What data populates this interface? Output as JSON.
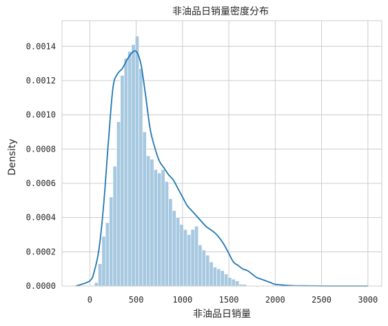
{
  "chart_data": {
    "type": "histogram-density",
    "title": "非油品日销量密度分布",
    "xlabel": "非油品日销量",
    "ylabel": "Density",
    "xlim": [
      -300,
      3150
    ],
    "ylim": [
      0,
      0.00155
    ],
    "xticks": [
      0,
      500,
      1000,
      1500,
      2000,
      2500,
      3000
    ],
    "xtick_labels": [
      "0",
      "500",
      "1000",
      "1500",
      "2000",
      "2500",
      "3000"
    ],
    "yticks": [
      0,
      0.0002,
      0.0004,
      0.0006,
      0.0008,
      0.001,
      0.0012,
      0.0014
    ],
    "ytick_labels": [
      "0.0000",
      "0.0002",
      "0.0004",
      "0.0006",
      "0.0008",
      "0.0010",
      "0.0012",
      "0.0014"
    ],
    "grid": true,
    "bar_color": "#a6c8e0",
    "line_color": "#1f77b4",
    "bins": {
      "start": 50,
      "width": 40,
      "values": [
        2e-05,
        0.00013,
        0.00029,
        0.00037,
        0.00052,
        0.0007,
        0.00096,
        0.00123,
        0.00133,
        0.00137,
        0.00141,
        0.00146,
        0.00127,
        0.0009,
        0.00076,
        0.00074,
        0.00068,
        0.00066,
        0.00068,
        0.00061,
        0.00051,
        0.00044,
        0.0004,
        0.00036,
        0.00033,
        0.0003,
        0.00033,
        0.00035,
        0.00024,
        0.00021,
        0.00018,
        0.00014,
        0.00011,
        0.0001,
        9e-05,
        7e-05,
        5e-05,
        4e-05,
        3e-05,
        1e-05,
        1e-05
      ]
    },
    "kde": {
      "x": [
        -150,
        0,
        50,
        100,
        150,
        200,
        250,
        300,
        350,
        400,
        450,
        500,
        550,
        600,
        650,
        700,
        750,
        800,
        850,
        900,
        950,
        1000,
        1050,
        1100,
        1150,
        1200,
        1250,
        1300,
        1350,
        1400,
        1450,
        1500,
        1550,
        1600,
        1650,
        1700,
        1750,
        1800,
        1850,
        1900,
        1950,
        2000,
        2100,
        2200,
        2400,
        2600,
        2800,
        3000
      ],
      "y": [
        0,
        3e-05,
        9e-05,
        0.00022,
        0.00048,
        0.00084,
        0.00116,
        0.00124,
        0.00127,
        0.00132,
        0.00136,
        0.00137,
        0.0013,
        0.00112,
        0.00092,
        0.00081,
        0.00073,
        0.00069,
        0.00065,
        0.00062,
        0.00057,
        0.00052,
        0.00047,
        0.00044,
        0.00041,
        0.00038,
        0.00035,
        0.00033,
        0.00031,
        0.00028,
        0.00024,
        0.00019,
        0.00014,
        0.00012,
        0.0001,
        9e-05,
        7e-05,
        5e-05,
        4e-05,
        3e-05,
        2e-05,
        1e-05,
        5e-06,
        2e-06,
        1e-06,
        0,
        0,
        0
      ]
    }
  }
}
